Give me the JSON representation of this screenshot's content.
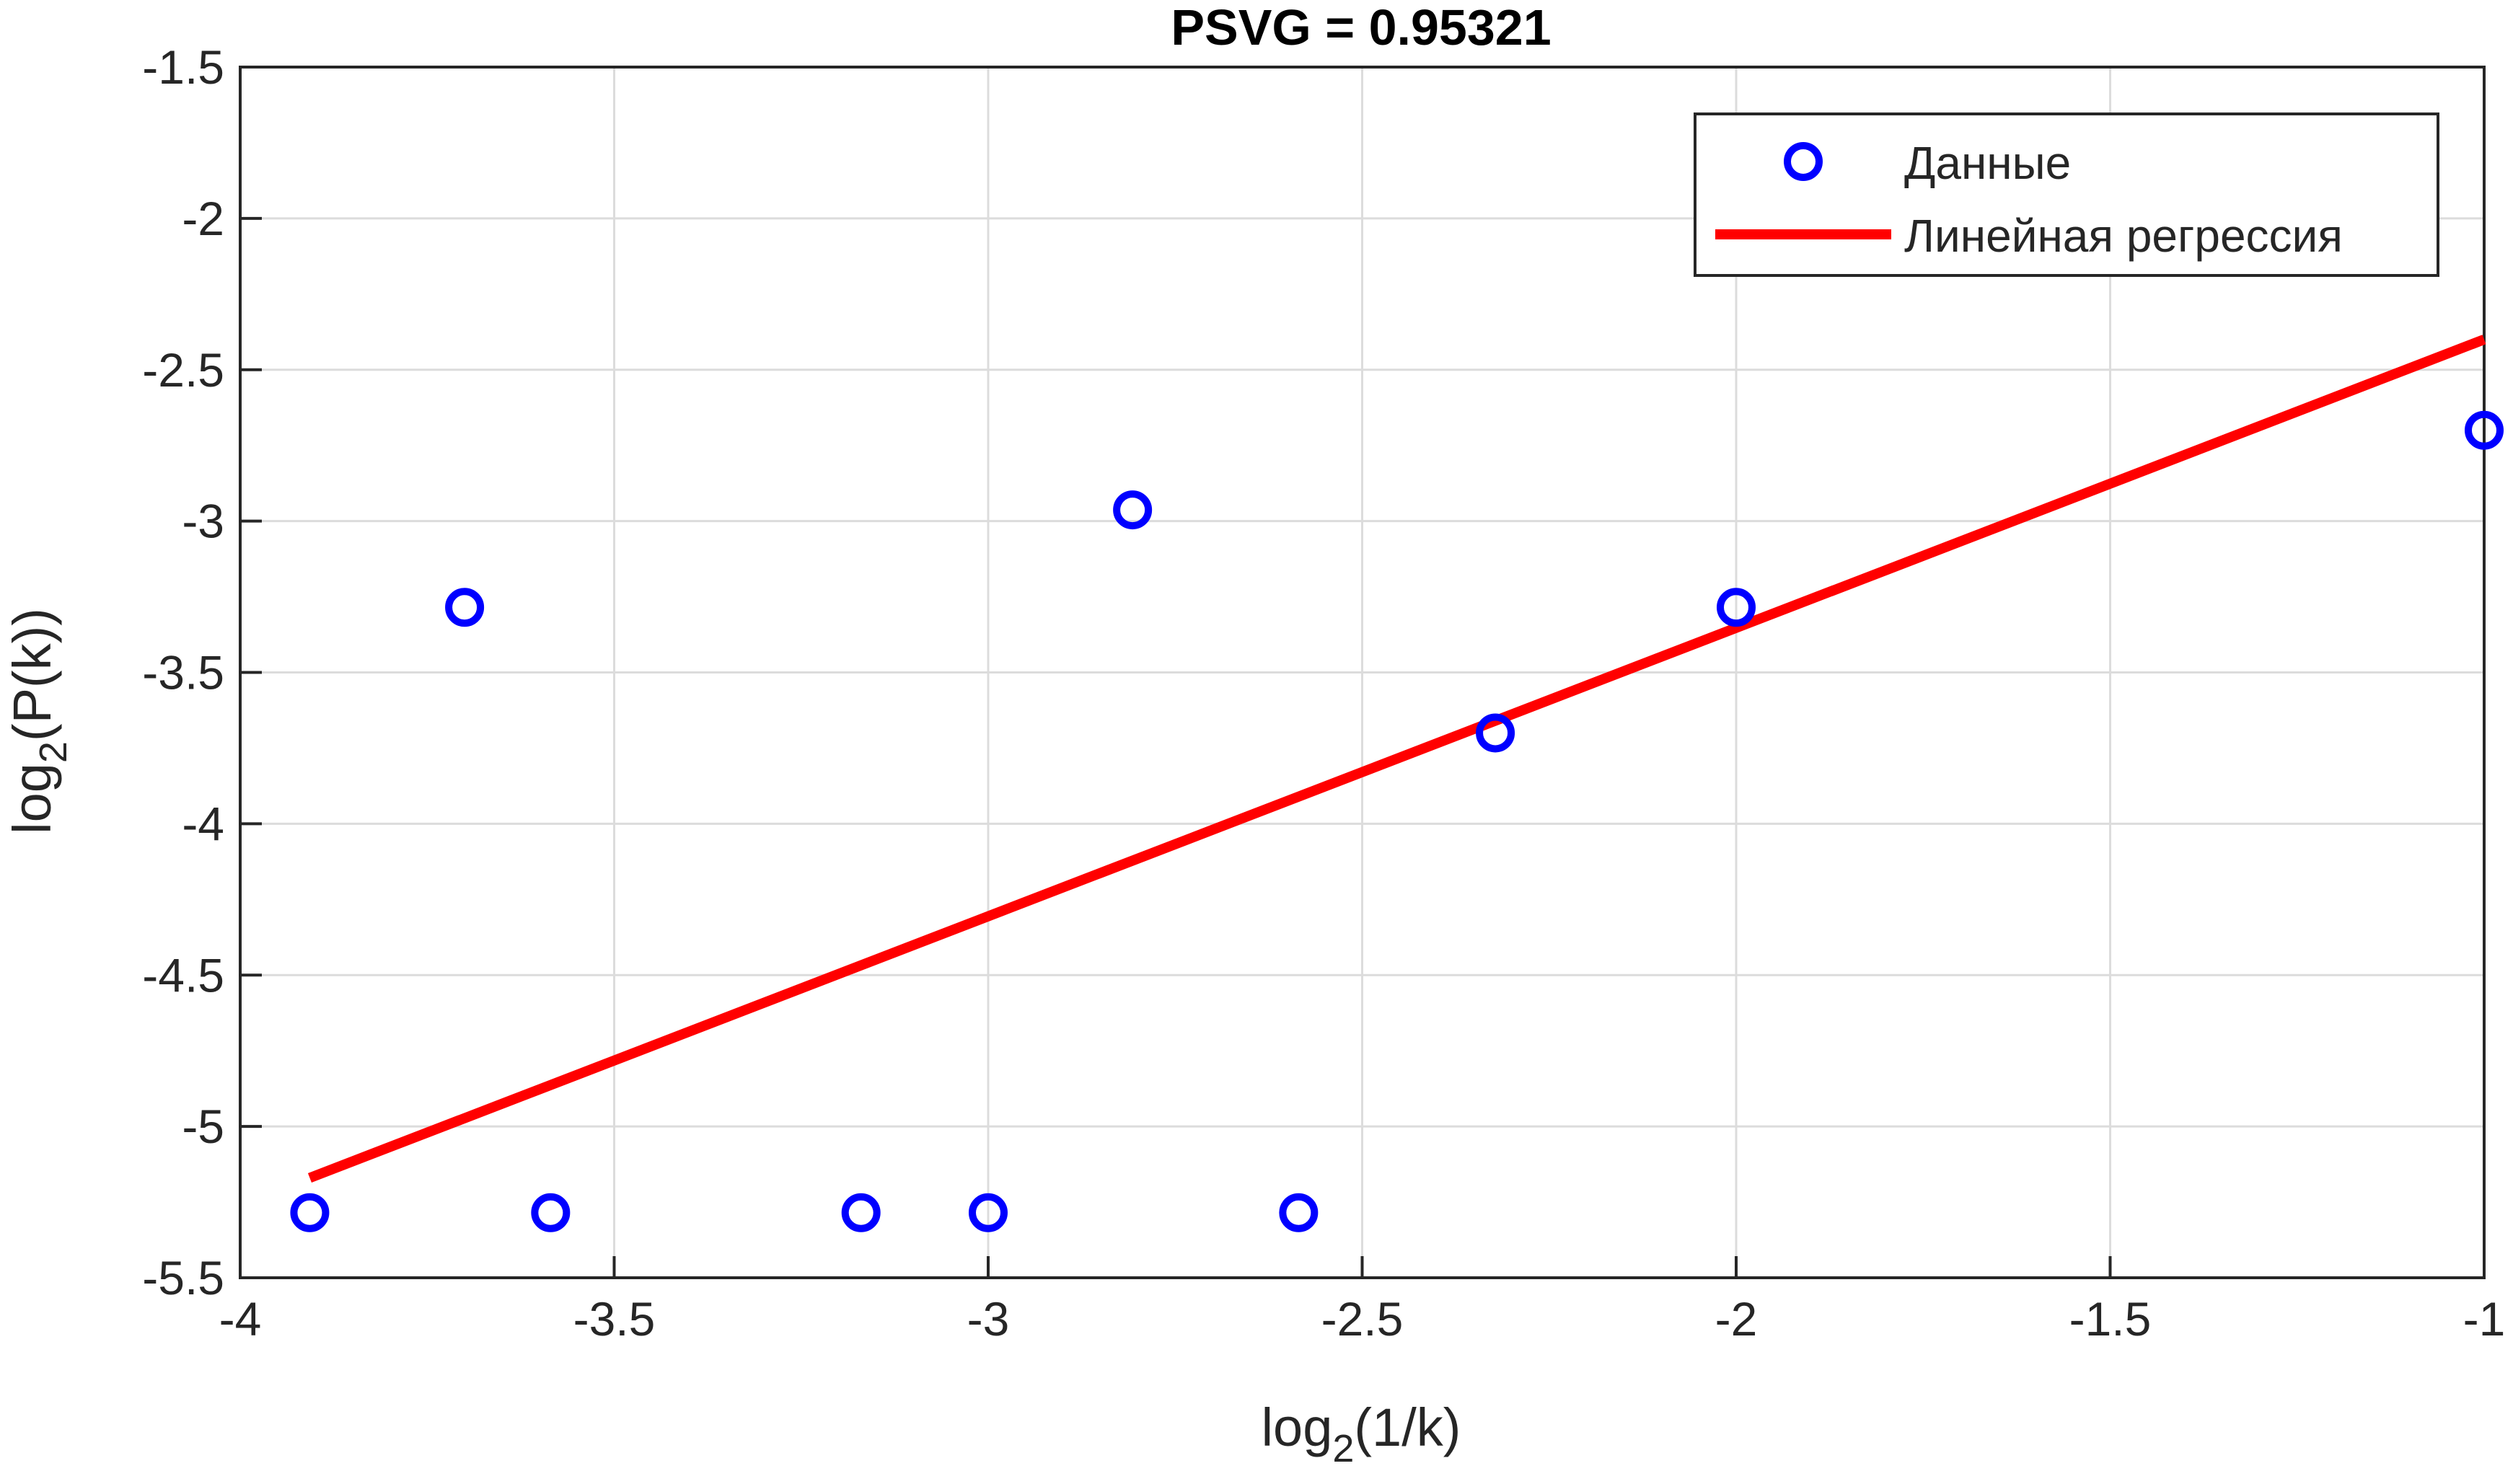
{
  "chart_data": {
    "type": "scatter",
    "title": "PSVG = 0.95321",
    "xlabel": {
      "base": "log",
      "sub": "2",
      "rest": "(1/k)"
    },
    "ylabel": {
      "base": "log",
      "sub": "2",
      "rest": "(P(k))"
    },
    "xlim": [
      -4,
      -1
    ],
    "ylim": [
      -5.5,
      -1.5
    ],
    "xticks": [
      -4,
      -3.5,
      -3,
      -2.5,
      -2,
      -1.5,
      -1
    ],
    "xtick_labels": [
      "-4",
      "-3.5",
      "-3",
      "-2.5",
      "-2",
      "-1.5",
      "-1"
    ],
    "yticks": [
      -5.5,
      -5,
      -4.5,
      -4,
      -3.5,
      -3,
      -2.5,
      -2,
      -1.5
    ],
    "ytick_labels": [
      "-5.5",
      "-5",
      "-4.5",
      "-4",
      "-3.5",
      "-3",
      "-2.5",
      "-2",
      "-1.5"
    ],
    "grid": true,
    "legend_position": "top-right",
    "series": [
      {
        "name": "Данные",
        "kind": "marker",
        "color": "#0000FF",
        "points": [
          {
            "x": -3.907,
            "y": -5.285
          },
          {
            "x": -3.7,
            "y": -3.285
          },
          {
            "x": -3.585,
            "y": -5.285
          },
          {
            "x": -3.17,
            "y": -5.285
          },
          {
            "x": -3.0,
            "y": -5.285
          },
          {
            "x": -2.807,
            "y": -2.963
          },
          {
            "x": -2.585,
            "y": -5.285
          },
          {
            "x": -2.322,
            "y": -3.7
          },
          {
            "x": -2.0,
            "y": -3.285
          },
          {
            "x": -1.0,
            "y": -2.7
          }
        ]
      },
      {
        "name": "Линейная регрессия",
        "kind": "line",
        "color": "#FF0000",
        "points": [
          {
            "x": -3.907,
            "y": -5.17
          },
          {
            "x": -1.0,
            "y": -2.4
          }
        ]
      }
    ]
  }
}
